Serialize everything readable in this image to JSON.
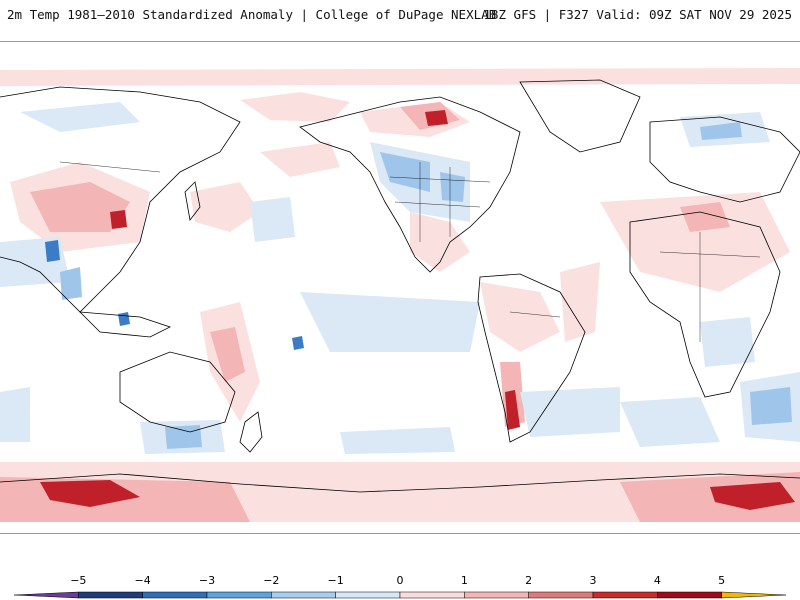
{
  "header": {
    "title_left": "2m Temp 1981–2010 Standardized Anomaly | College of DuPage NEXLAB",
    "title_right": "18Z GFS | F327 Valid: 09Z SAT NOV 29 2025"
  },
  "colorbar": {
    "labels": [
      "−5",
      "−4",
      "−3",
      "−2",
      "−1",
      "0",
      "1",
      "2",
      "3",
      "4",
      "5"
    ],
    "colors": [
      "#6a3d9a",
      "#1f3d7a",
      "#2e6fb8",
      "#5da3dd",
      "#a9cdef",
      "#d8e7f7",
      "#f9dcdc",
      "#f3b5b5",
      "#e07a7a",
      "#c92c2c",
      "#9d0c1b",
      "#f2b705"
    ]
  },
  "palette": {
    "red_light": "#fbe0e0",
    "red_mid": "#f3b5b5",
    "red_dark": "#c0202a",
    "blue_light": "#dbe8f6",
    "blue_mid": "#9fc6ea",
    "blue_dark": "#3b7cc4",
    "coast": "#000000"
  }
}
